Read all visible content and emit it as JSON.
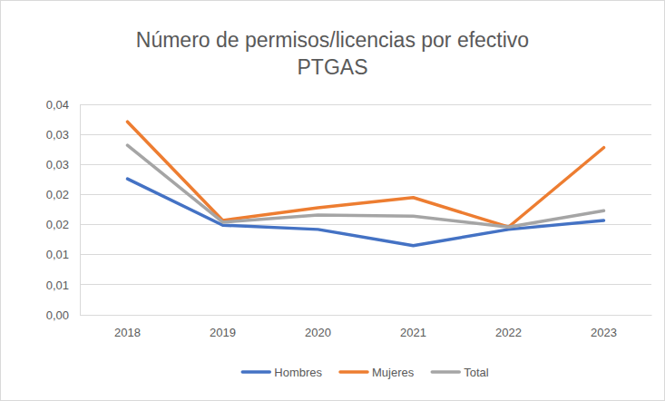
{
  "chart_data": {
    "type": "line",
    "title": "Número de permisos/licencias por efectivo\nPTGAS",
    "categories": [
      "2018",
      "2019",
      "2020",
      "2021",
      "2022",
      "2023"
    ],
    "series": [
      {
        "name": "Hombres",
        "color": "#4472c4",
        "values": [
          0.0226,
          0.0149,
          0.0142,
          0.0115,
          0.0142,
          0.0157
        ]
      },
      {
        "name": "Mujeres",
        "color": "#ed7d31",
        "values": [
          0.0321,
          0.0157,
          0.0178,
          0.0195,
          0.0146,
          0.0278
        ]
      },
      {
        "name": "Total",
        "color": "#a5a5a5",
        "values": [
          0.0282,
          0.0154,
          0.0166,
          0.0164,
          0.0146,
          0.0173
        ]
      }
    ],
    "ylim": [
      0,
      0.035
    ],
    "yticks": [
      {
        "value": 0,
        "label": "0,00"
      },
      {
        "value": 0.005,
        "label": "0,01"
      },
      {
        "value": 0.01,
        "label": "0,01"
      },
      {
        "value": 0.015,
        "label": "0,02"
      },
      {
        "value": 0.02,
        "label": "0,02"
      },
      {
        "value": 0.025,
        "label": "0,03"
      },
      {
        "value": 0.03,
        "label": "0,03"
      },
      {
        "value": 0.035,
        "label": "0,04"
      }
    ],
    "grid": true,
    "legend": "bottom"
  }
}
